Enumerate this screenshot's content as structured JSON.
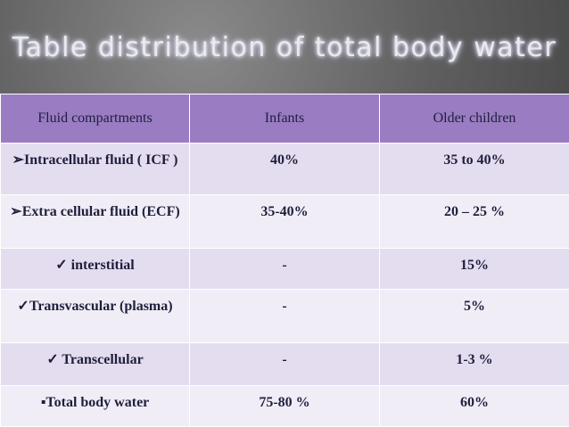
{
  "title": "Table distribution of total body water",
  "table": {
    "header": [
      "Fluid compartments",
      "Infants",
      "Older children"
    ],
    "rows": [
      [
        "➢Intracellular fluid ( ICF )",
        "40%",
        "35 to 40%"
      ],
      [
        "➢Extra cellular fluid (ECF)",
        "35-40%",
        "20 – 25 %"
      ],
      [
        "✓ interstitial",
        "-",
        "15%"
      ],
      [
        "✓Transvascular (plasma)",
        "-",
        "5%"
      ],
      [
        "✓ Transcellular",
        "-",
        "1-3 %"
      ],
      [
        "▪Total body water",
        "75-80 %",
        "60%"
      ]
    ]
  }
}
